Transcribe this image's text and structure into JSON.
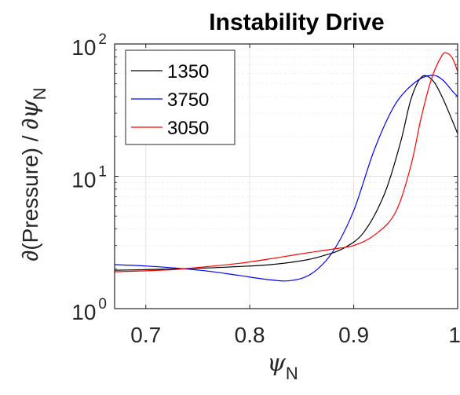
{
  "chart_data": {
    "type": "line",
    "title": "Instability Drive",
    "xlabel": {
      "symbol": "ψ",
      "subscript": "N"
    },
    "ylabel": {
      "prefix": "∂(Pressure) / ∂",
      "symbol": "ψ",
      "subscript": "N"
    },
    "xlim": [
      0.67,
      1.0
    ],
    "ylim": [
      1,
      100
    ],
    "yscale": "log",
    "xticks": [
      {
        "value": 0.7,
        "label": "0.7"
      },
      {
        "value": 0.8,
        "label": "0.8"
      },
      {
        "value": 0.9,
        "label": "0.9"
      },
      {
        "value": 1.0,
        "label": "1"
      }
    ],
    "yticks": [
      {
        "value": 1,
        "base": "10",
        "exp": "0"
      },
      {
        "value": 10,
        "base": "10",
        "exp": "1"
      },
      {
        "value": 100,
        "base": "10",
        "exp": "2"
      }
    ],
    "grid": true,
    "legend_position": "top-left",
    "series": [
      {
        "name": "1350",
        "color": "#000000",
        "x": [
          0.67,
          0.7,
          0.73,
          0.76,
          0.79,
          0.82,
          0.85,
          0.87,
          0.89,
          0.91,
          0.93,
          0.945,
          0.955,
          0.965,
          0.975,
          0.985,
          1.0
        ],
        "y": [
          1.95,
          1.97,
          2.0,
          2.03,
          2.08,
          2.15,
          2.3,
          2.5,
          2.85,
          3.8,
          7.5,
          18,
          38,
          56,
          54,
          40,
          21
        ]
      },
      {
        "name": "3750",
        "color": "#0000ff",
        "x": [
          0.67,
          0.7,
          0.73,
          0.76,
          0.79,
          0.82,
          0.84,
          0.86,
          0.88,
          0.9,
          0.92,
          0.94,
          0.96,
          0.975,
          0.985,
          0.995,
          1.0
        ],
        "y": [
          2.15,
          2.1,
          2.02,
          1.92,
          1.78,
          1.65,
          1.63,
          1.85,
          2.7,
          5.5,
          16,
          35,
          52,
          58,
          54,
          44,
          40
        ]
      },
      {
        "name": "3050",
        "color": "#ff0000",
        "x": [
          0.67,
          0.7,
          0.73,
          0.76,
          0.79,
          0.82,
          0.85,
          0.88,
          0.9,
          0.92,
          0.94,
          0.955,
          0.965,
          0.975,
          0.985,
          0.99,
          0.995,
          1.0
        ],
        "y": [
          1.9,
          1.93,
          1.98,
          2.08,
          2.2,
          2.38,
          2.6,
          2.82,
          3.0,
          3.6,
          5.3,
          12,
          28,
          55,
          82,
          85,
          78,
          62
        ]
      }
    ]
  }
}
